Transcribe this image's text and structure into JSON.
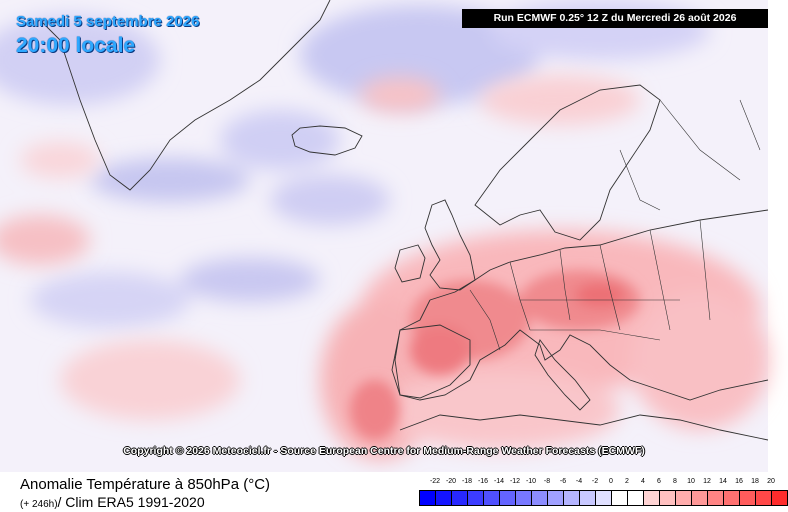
{
  "header": {
    "date": "Samedi 5 septembre 2026",
    "time": "20:00 locale",
    "run": "Run ECMWF 0.25° 12 Z du Mercredi 26 août 2026"
  },
  "map": {
    "credit": "Copyright © 2026 Meteociel.fr - Source European Centre for Medium-Range Weather Forecasts (ECMWF)",
    "colors": {
      "sea_background": "#f4f1fa",
      "cold_anomaly": "#c9c8f2",
      "warm_anomaly": "#f7a8aa",
      "strong_warm": "#f06a6e",
      "coastline": "#333333"
    }
  },
  "footer": {
    "title": "Anomalie Température à 850hPa (°C)",
    "lead": "(+ 246h)",
    "clim": "/ Clim ERA5 1991-2020"
  },
  "legend": {
    "labels": [
      "-22",
      "-20",
      "-18",
      "-16",
      "-14",
      "-12",
      "-10",
      "-8",
      "-6",
      "-4",
      "-2",
      "0",
      "2",
      "4",
      "6",
      "8",
      "10",
      "12",
      "14",
      "16",
      "18",
      "20"
    ],
    "colors": [
      "#0000ff",
      "#1414ff",
      "#2828ff",
      "#3c3cff",
      "#5050ff",
      "#6464ff",
      "#7878ff",
      "#8c8cff",
      "#a0a0ff",
      "#b4b4ff",
      "#c8c8ff",
      "#e0e0ff",
      "#ffffff",
      "#ffffff",
      "#ffd4d4",
      "#ffc0c0",
      "#ffacac",
      "#ff9898",
      "#ff8484",
      "#ff7070",
      "#ff5c5c",
      "#ff4848",
      "#ff2c2c"
    ]
  }
}
